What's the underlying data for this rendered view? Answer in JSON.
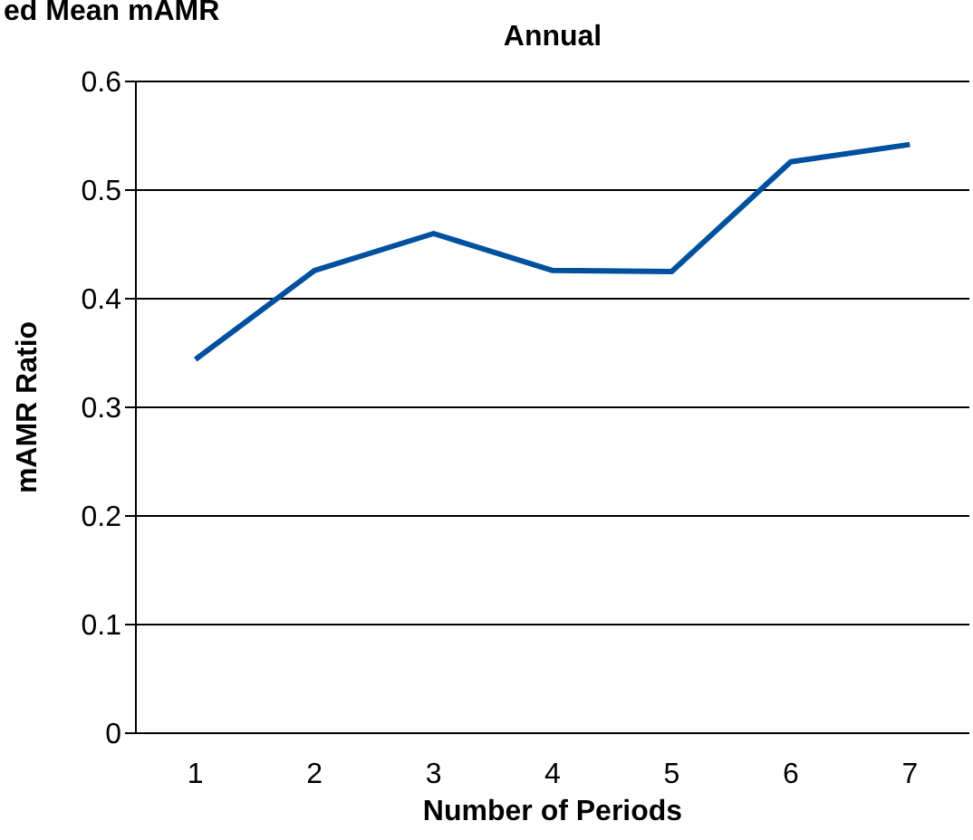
{
  "chart_data": {
    "type": "line",
    "title": "ed Mean mAMR",
    "subtitle": "Annual",
    "xlabel": "Number of Periods",
    "ylabel": "mAMR Ratio",
    "x": [
      1,
      2,
      3,
      4,
      5,
      6,
      7
    ],
    "xlim": [
      0.5,
      7.5
    ],
    "xticks": [
      1,
      2,
      3,
      4,
      5,
      6,
      7
    ],
    "series": [
      {
        "color": "#0050a0",
        "values": [
          0.344,
          0.426,
          0.46,
          0.426,
          0.425,
          0.526,
          0.542
        ]
      }
    ],
    "ylim": [
      0,
      0.6
    ],
    "yticks": [
      0,
      0.1,
      0.2,
      0.3,
      0.4,
      0.5,
      0.6
    ],
    "grid": "y",
    "marker": "none",
    "line_style": "solid",
    "legend": false
  }
}
